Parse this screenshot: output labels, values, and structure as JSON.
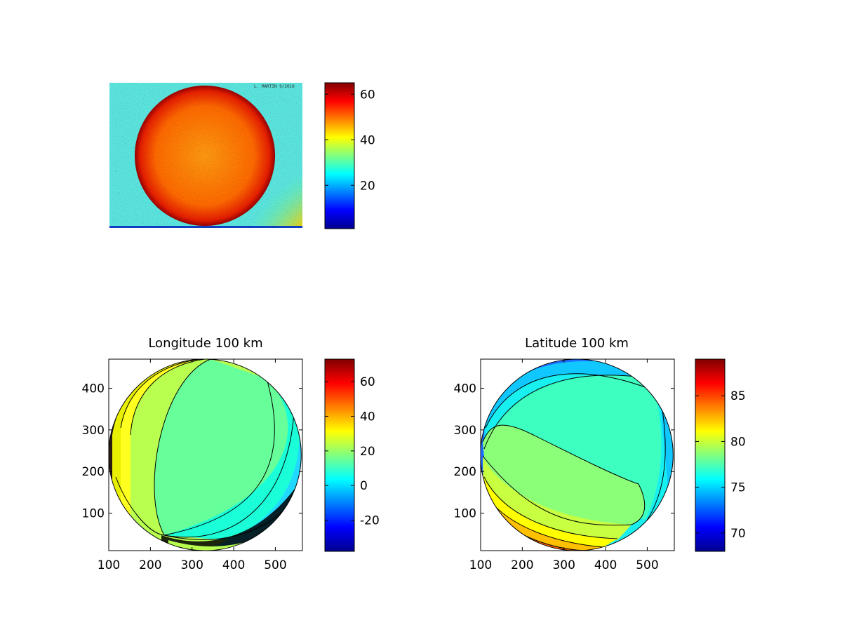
{
  "colormap": [
    "#00008f",
    "#0000ff",
    "#0080ff",
    "#00ffff",
    "#80ff80",
    "#ffff00",
    "#ff8000",
    "#ff0000",
    "#800000"
  ],
  "chart_data": [
    {
      "type": "heatmap",
      "title": "",
      "xlabel": "",
      "ylabel": "",
      "axes_visible": false,
      "description": "",
      "colorbar": {
        "range": [
          1,
          65
        ],
        "ticks": [
          20,
          40,
          60
        ]
      },
      "watermark": "L. MARTIN 9/2010"
    },
    {
      "type": "heatmap",
      "title": "Longitude 100 km",
      "xlabel": "",
      "ylabel": "",
      "xlim": [
        100,
        565
      ],
      "ylim": [
        10,
        470
      ],
      "xticks": [
        100,
        200,
        300,
        400,
        500
      ],
      "yticks": [
        100,
        200,
        300,
        400
      ],
      "disk": {
        "center": [
          330,
          240
        ],
        "radius": 230
      },
      "colorbar": {
        "range": [
          -38,
          73
        ],
        "ticks": [
          -20,
          0,
          20,
          40,
          60
        ]
      },
      "contour_levels_shown": [
        -30,
        -20,
        -10,
        0,
        10,
        20,
        30,
        40,
        50
      ]
    },
    {
      "type": "heatmap",
      "title": "Latitude 100 km",
      "xlabel": "",
      "ylabel": "",
      "xlim": [
        100,
        565
      ],
      "ylim": [
        10,
        470
      ],
      "xticks": [
        100,
        200,
        300,
        400,
        500
      ],
      "yticks": [
        100,
        200,
        300,
        400
      ],
      "disk": {
        "center": [
          330,
          240
        ],
        "radius": 230
      },
      "colorbar": {
        "range": [
          68,
          89
        ],
        "ticks": [
          70,
          75,
          80,
          85
        ]
      },
      "contour_levels_shown": [
        70,
        72,
        74,
        76,
        78,
        80,
        82,
        84,
        86
      ]
    }
  ]
}
